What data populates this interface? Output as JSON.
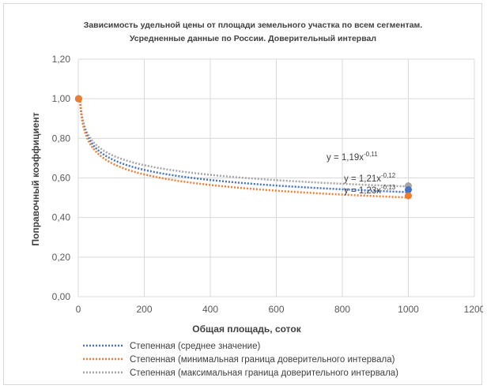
{
  "chart_data": {
    "type": "line",
    "title_line1": "Зависимость удельной цены от площади земельного участка по всем сегментам.",
    "title_line2": "Усредненные данные по России. Доверительный интервал",
    "xlabel": "Общая площадь, соток",
    "ylabel": "Поправочный коэффициент",
    "xlim": [
      0,
      1200
    ],
    "ylim": [
      0,
      1.2
    ],
    "x_ticks": [
      0,
      200,
      400,
      600,
      800,
      1000,
      1200
    ],
    "x_tick_labels": [
      "0",
      "200",
      "400",
      "600",
      "800",
      "1000",
      "1200"
    ],
    "y_ticks": [
      0,
      0.2,
      0.4,
      0.6,
      0.8,
      1.0,
      1.2
    ],
    "y_tick_labels": [
      "0,00",
      "0,20",
      "0,40",
      "0,60",
      "0,80",
      "1,00",
      "1,20"
    ],
    "grid": true,
    "legend_position": "bottom",
    "series": [
      {
        "name": "Степенная (среднее значение)",
        "color": "#4472c4",
        "coef": 1.21,
        "exp": -0.12,
        "equation_base": "y = 1,21x",
        "equation_exp": "-0,12",
        "points": [
          {
            "x": 1,
            "y": 1.0
          },
          {
            "x": 1000,
            "y": 0.54
          }
        ]
      },
      {
        "name": "Степенная (минимальная граница доверительного интервала)",
        "color": "#ed7d31",
        "coef": 1.23,
        "exp": -0.13,
        "equation_base": "y = 1,23x",
        "equation_exp": "-0,13",
        "points": [
          {
            "x": 1,
            "y": 1.0
          },
          {
            "x": 1000,
            "y": 0.51
          }
        ]
      },
      {
        "name": "Степенная (максимальная граница доверительного интервала)",
        "color": "#a5a5a5",
        "coef": 1.19,
        "exp": -0.11,
        "equation_base": "y = 1,19x",
        "equation_exp": "-0,11",
        "points": [
          {
            "x": 1,
            "y": 1.0
          },
          {
            "x": 1000,
            "y": 0.56
          }
        ]
      }
    ]
  }
}
